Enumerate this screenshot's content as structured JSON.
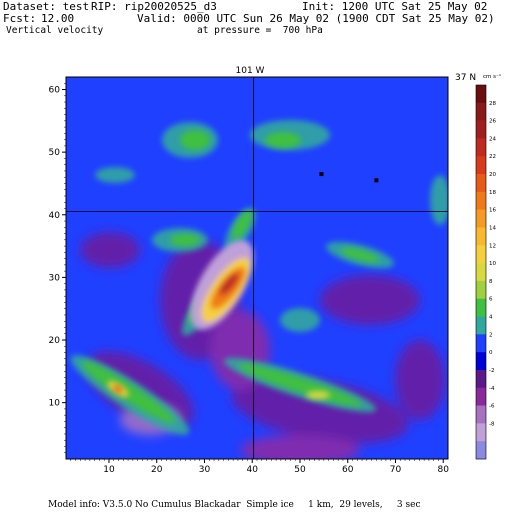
{
  "header": {
    "dataset": "Dataset: test",
    "rip": "RIP: rip20020525_d3",
    "init": "Init: 1200 UTC Sat 25 May 02",
    "fcst_label": "Fcst:",
    "fcst_value": "12.00",
    "valid": "Valid: 0000 UTC Sun 26 May 02 (1900 CDT Sat 25 May 02)",
    "field": "Vertical velocity",
    "pressure": "at pressure =  700 hPa"
  },
  "plot": {
    "top_label": "101 W",
    "right_label": "37 N",
    "units": "cm s⁻¹",
    "x_ticks": [
      "10",
      "20",
      "30",
      "40",
      "50",
      "60",
      "70",
      "80"
    ],
    "y_ticks": [
      "10",
      "20",
      "30",
      "40",
      "50",
      "60"
    ],
    "x_range": [
      1,
      81
    ],
    "y_range": [
      1,
      62
    ],
    "crosshair": {
      "lon_x": 40.3,
      "lat_y": 40.5
    },
    "markers": [
      {
        "name": "marker-1",
        "x": 54.5,
        "y": 46.5
      },
      {
        "name": "marker-2",
        "x": 66,
        "y": 45.5
      }
    ]
  },
  "colorbar": {
    "levels": [
      "28",
      "26",
      "24",
      "22",
      "20",
      "18",
      "16",
      "14",
      "12",
      "10",
      "8",
      "6",
      "4",
      "2",
      "0",
      "-2",
      "-4",
      "-6",
      "-8"
    ],
    "colors": [
      "#6a0e10",
      "#8a1a1a",
      "#a02020",
      "#c02a20",
      "#d83a1c",
      "#e85a18",
      "#f07a18",
      "#f59a22",
      "#f8b830",
      "#f5d03c",
      "#d8d840",
      "#a0d040",
      "#40c040",
      "#30a8a0",
      "#2040ff",
      "#0000d8",
      "#5a1a8a",
      "#8a2a9a",
      "#a870c0",
      "#c0a0d8",
      "#8a8ae0"
    ]
  },
  "footer": "Model info: V3.5.0 No Cumulus Blackadar  Simple ice     1 km,  29 levels,     3 sec"
}
